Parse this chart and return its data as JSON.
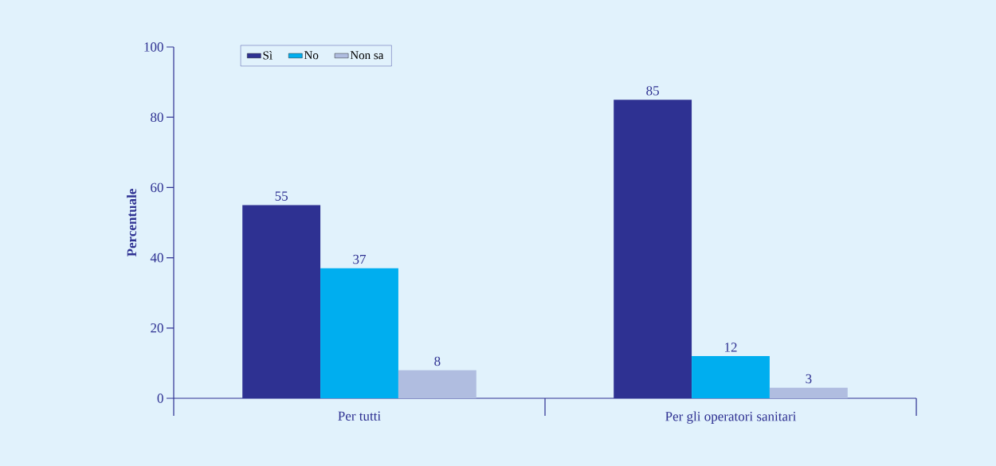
{
  "chart_data": {
    "type": "bar",
    "ylabel": "Percentuale",
    "categories": [
      "Per tutti",
      "Per gli operatori sanitari"
    ],
    "series": [
      {
        "name": "Sì",
        "color": "#2e3192",
        "values": [
          55,
          85
        ]
      },
      {
        "name": "No",
        "color": "#00aeef",
        "values": [
          37,
          12
        ]
      },
      {
        "name": "Non sa",
        "color": "#b0bde0",
        "values": [
          8,
          3
        ]
      }
    ],
    "ylim": [
      0,
      100
    ],
    "yticks": [
      0,
      20,
      40,
      60,
      80,
      100
    ],
    "data_labels": true,
    "legend": "top left"
  }
}
